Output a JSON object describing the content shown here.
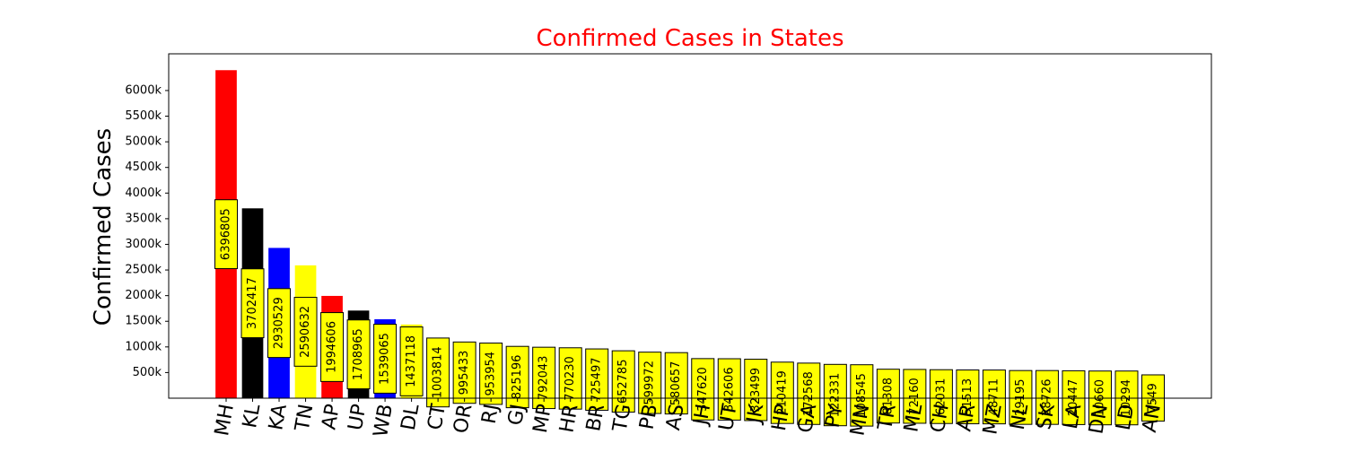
{
  "chart_data": {
    "type": "bar",
    "title": "Confirmed Cases in States",
    "title_color": "#ff0000",
    "xlabel": "",
    "ylabel": "Confirmed Cases",
    "ylim": [
      0,
      6716000
    ],
    "y_ticks": [
      500000,
      1000000,
      1500000,
      2000000,
      2500000,
      3000000,
      3500000,
      4000000,
      4500000,
      5000000,
      5500000,
      6000000
    ],
    "y_tick_labels": [
      "500k",
      "1000k",
      "1500k",
      "2000k",
      "2500k",
      "3000k",
      "3500k",
      "4000k",
      "4500k",
      "5000k",
      "5500k",
      "6000k"
    ],
    "categories": [
      "MH",
      "KL",
      "KA",
      "TN",
      "AP",
      "UP",
      "WB",
      "DL",
      "CT",
      "OR",
      "RJ",
      "GJ",
      "MP",
      "HR",
      "BR",
      "TG",
      "PB",
      "AS",
      "JH",
      "UT",
      "JK",
      "HP",
      "GA",
      "PY",
      "MN",
      "TR",
      "ML",
      "CH",
      "AR",
      "MZ",
      "NL",
      "SK",
      "LA",
      "DN",
      "LD",
      "AN"
    ],
    "values": [
      6396805,
      3702417,
      2930529,
      2590632,
      1994606,
      1708965,
      1539065,
      1437118,
      1003814,
      995433,
      953954,
      825196,
      792043,
      770230,
      725497,
      652785,
      599972,
      580657,
      347620,
      342606,
      323499,
      210419,
      172568,
      122331,
      108545,
      81308,
      72160,
      62031,
      51513,
      48711,
      29195,
      28726,
      20447,
      10660,
      10294,
      7549
    ],
    "bar_colors": [
      "#ff0000",
      "#000000",
      "#0000ff",
      "#ffff00"
    ],
    "data_label_box_color": "#ffff00",
    "grid": false,
    "legend": "none"
  }
}
